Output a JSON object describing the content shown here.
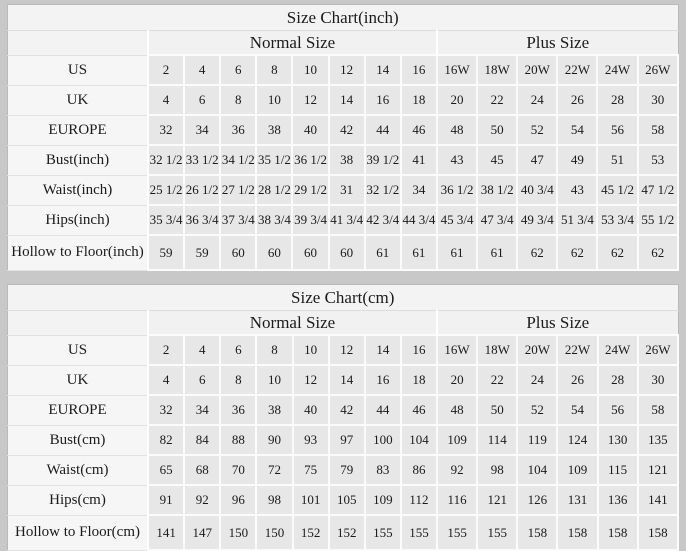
{
  "colors": {
    "page_background": "#c8c8c8",
    "table_background": "#f4f4f4",
    "cell_background": "#e7e7e7",
    "gridline": "#ffffff",
    "text": "#1b1b1b"
  },
  "chart_data": [
    {
      "type": "table",
      "title": "Size Chart(inch)",
      "group_headers": [
        "Normal Size",
        "Plus Size"
      ],
      "columns_normal": 8,
      "columns_plus": 6,
      "rows": [
        {
          "label": "US",
          "normal": [
            "2",
            "4",
            "6",
            "8",
            "10",
            "12",
            "14",
            "16"
          ],
          "plus": [
            "16W",
            "18W",
            "20W",
            "22W",
            "24W",
            "26W"
          ]
        },
        {
          "label": "UK",
          "normal": [
            "4",
            "6",
            "8",
            "10",
            "12",
            "14",
            "16",
            "18"
          ],
          "plus": [
            "20",
            "22",
            "24",
            "26",
            "28",
            "30"
          ]
        },
        {
          "label": "EUROPE",
          "normal": [
            "32",
            "34",
            "36",
            "38",
            "40",
            "42",
            "44",
            "46"
          ],
          "plus": [
            "48",
            "50",
            "52",
            "54",
            "56",
            "58"
          ]
        },
        {
          "label": "Bust(inch)",
          "normal": [
            "32 1/2",
            "33 1/2",
            "34 1/2",
            "35 1/2",
            "36 1/2",
            "38",
            "39 1/2",
            "41"
          ],
          "plus": [
            "43",
            "45",
            "47",
            "49",
            "51",
            "53"
          ]
        },
        {
          "label": "Waist(inch)",
          "normal": [
            "25 1/2",
            "26 1/2",
            "27 1/2",
            "28 1/2",
            "29 1/2",
            "31",
            "32 1/2",
            "34"
          ],
          "plus": [
            "36 1/2",
            "38 1/2",
            "40 3/4",
            "43",
            "45 1/2",
            "47 1/2"
          ]
        },
        {
          "label": "Hips(inch)",
          "normal": [
            "35 3/4",
            "36 3/4",
            "37 3/4",
            "38 3/4",
            "39 3/4",
            "41 3/4",
            "42 3/4",
            "44 3/4"
          ],
          "plus": [
            "45 3/4",
            "47 3/4",
            "49 3/4",
            "51 3/4",
            "53 3/4",
            "55 1/2"
          ]
        },
        {
          "label": "Hollow to Floor(inch)",
          "normal": [
            "59",
            "59",
            "60",
            "60",
            "60",
            "60",
            "61",
            "61"
          ],
          "plus": [
            "61",
            "61",
            "62",
            "62",
            "62",
            "62"
          ]
        }
      ]
    },
    {
      "type": "table",
      "title": "Size Chart(cm)",
      "group_headers": [
        "Normal Size",
        "Plus Size"
      ],
      "columns_normal": 8,
      "columns_plus": 6,
      "rows": [
        {
          "label": "US",
          "normal": [
            "2",
            "4",
            "6",
            "8",
            "10",
            "12",
            "14",
            "16"
          ],
          "plus": [
            "16W",
            "18W",
            "20W",
            "22W",
            "24W",
            "26W"
          ]
        },
        {
          "label": "UK",
          "normal": [
            "4",
            "6",
            "8",
            "10",
            "12",
            "14",
            "16",
            "18"
          ],
          "plus": [
            "20",
            "22",
            "24",
            "26",
            "28",
            "30"
          ]
        },
        {
          "label": "EUROPE",
          "normal": [
            "32",
            "34",
            "36",
            "38",
            "40",
            "42",
            "44",
            "46"
          ],
          "plus": [
            "48",
            "50",
            "52",
            "54",
            "56",
            "58"
          ]
        },
        {
          "label": "Bust(cm)",
          "normal": [
            "82",
            "84",
            "88",
            "90",
            "93",
            "97",
            "100",
            "104"
          ],
          "plus": [
            "109",
            "114",
            "119",
            "124",
            "130",
            "135"
          ]
        },
        {
          "label": "Waist(cm)",
          "normal": [
            "65",
            "68",
            "70",
            "72",
            "75",
            "79",
            "83",
            "86"
          ],
          "plus": [
            "92",
            "98",
            "104",
            "109",
            "115",
            "121"
          ]
        },
        {
          "label": "Hips(cm)",
          "normal": [
            "91",
            "92",
            "96",
            "98",
            "101",
            "105",
            "109",
            "112"
          ],
          "plus": [
            "116",
            "121",
            "126",
            "131",
            "136",
            "141"
          ]
        },
        {
          "label": "Hollow to Floor(cm)",
          "normal": [
            "141",
            "147",
            "150",
            "150",
            "152",
            "152",
            "155",
            "155"
          ],
          "plus": [
            "155",
            "155",
            "158",
            "158",
            "158",
            "158"
          ]
        }
      ]
    }
  ]
}
